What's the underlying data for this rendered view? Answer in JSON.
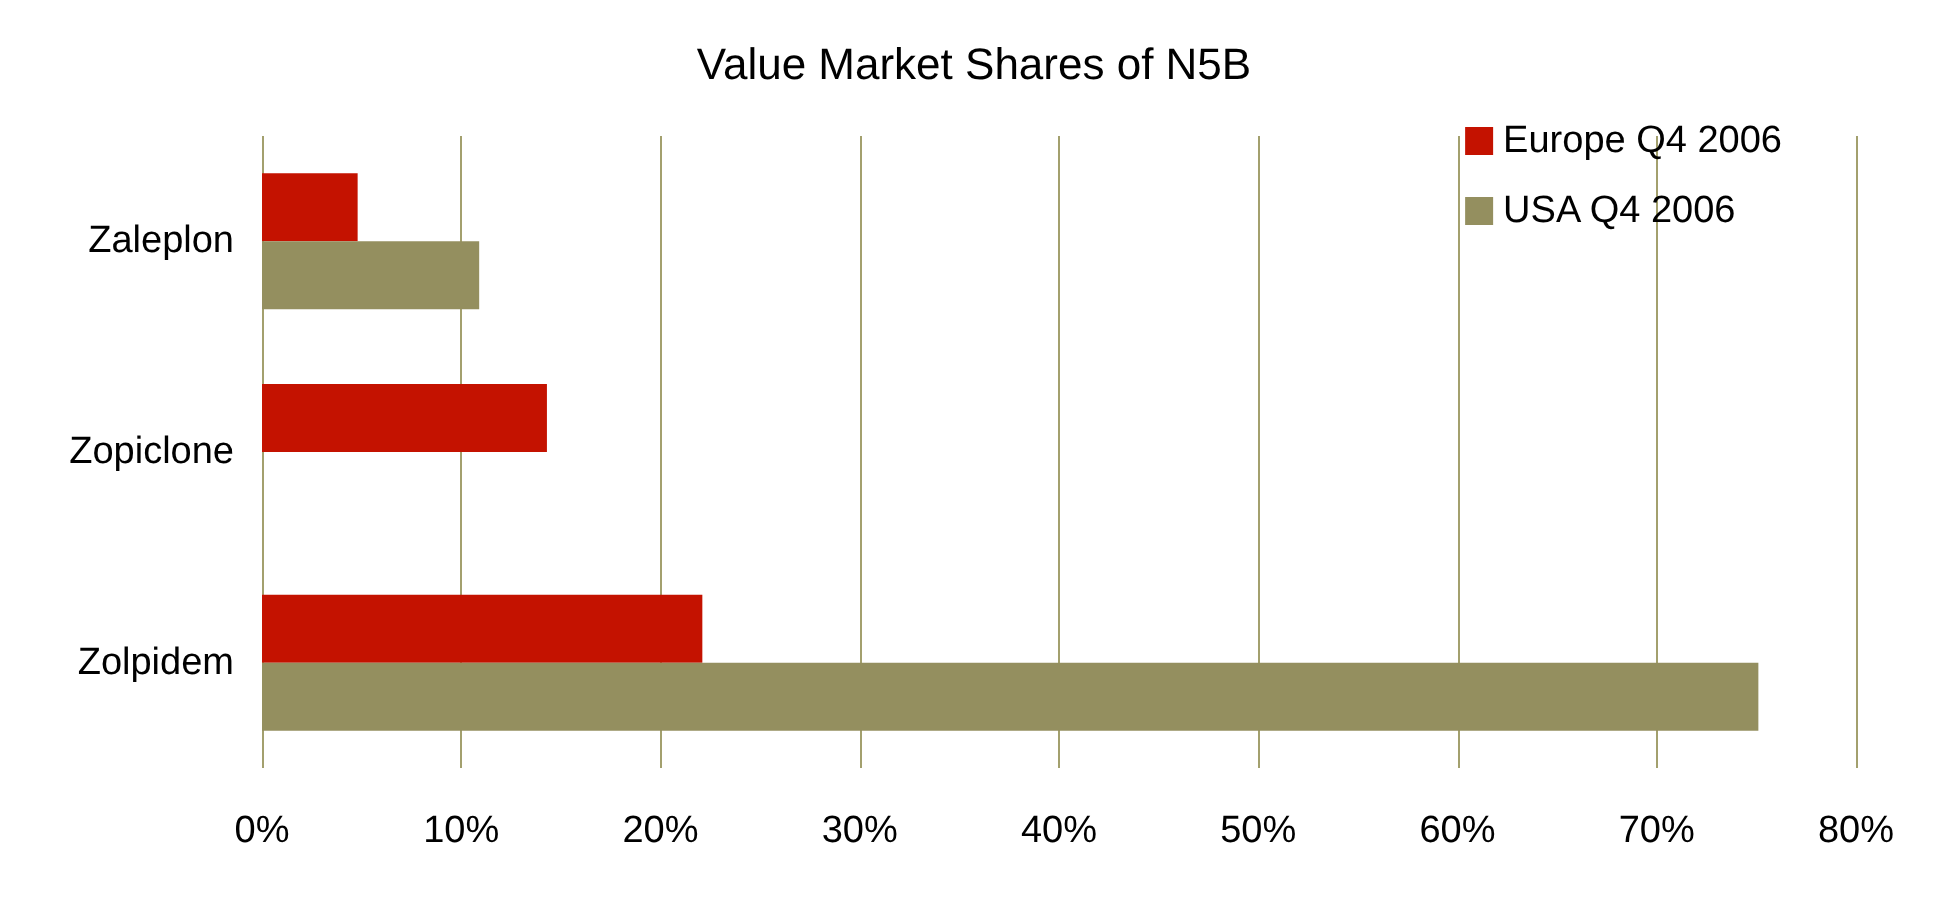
{
  "chart_data": {
    "type": "bar",
    "orientation": "horizontal",
    "title": "Value Market Shares of N5B",
    "categories": [
      "Zaleplon",
      "Zopiclone",
      "Zolpidem"
    ],
    "series": [
      {
        "name": "Europe Q4 2006",
        "color": "#c41200",
        "values": [
          4.8,
          14.3,
          22.1
        ]
      },
      {
        "name": "USA Q4 2006",
        "color": "#948f5f",
        "values": [
          10.9,
          null,
          75.1
        ]
      }
    ],
    "xlim": [
      0,
      80
    ],
    "xticks": [
      {
        "value": 0,
        "label": "0%"
      },
      {
        "value": 10,
        "label": "10%"
      },
      {
        "value": 20,
        "label": "20%"
      },
      {
        "value": 30,
        "label": "30%"
      },
      {
        "value": 40,
        "label": "40%"
      },
      {
        "value": 50,
        "label": "50%"
      },
      {
        "value": 60,
        "label": "60%"
      },
      {
        "value": 70,
        "label": "70%"
      },
      {
        "value": 80,
        "label": "80%"
      }
    ],
    "grid": "x",
    "legend": "top right"
  }
}
